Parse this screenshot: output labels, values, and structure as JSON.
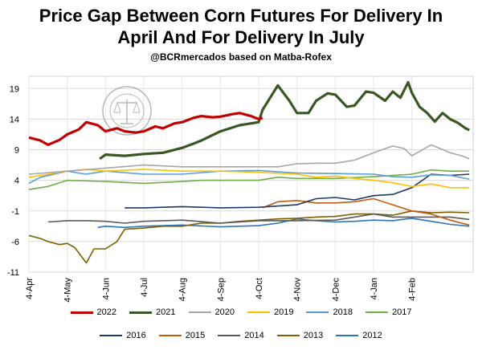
{
  "chart_data": {
    "type": "line",
    "title": "Price Gap Between Corn Futures For Delivery In April And For Delivery In July",
    "subtitle": "@BCRmercados based on Matba-Rofex",
    "xlabel": "",
    "ylabel": "",
    "x_ticks": [
      "4-Apr",
      "4-May",
      "4-Jun",
      "4-Jul",
      "4-Aug",
      "4-Sep",
      "4-Oct",
      "4-Nov",
      "4-Dec",
      "4-Jan",
      "4-Feb"
    ],
    "y_ticks": [
      19,
      14,
      9,
      4,
      -1,
      -6,
      -11
    ],
    "ylim": [
      -11,
      21
    ],
    "grid": true,
    "legend_position": "bottom",
    "x_unit": "months from 4-Apr",
    "series": [
      {
        "name": "2022",
        "color": "#c00000",
        "width": 3.2,
        "points": [
          [
            0,
            11
          ],
          [
            0.3,
            10.5
          ],
          [
            0.5,
            9.8
          ],
          [
            0.8,
            10.6
          ],
          [
            1,
            11.5
          ],
          [
            1.3,
            12.3
          ],
          [
            1.5,
            13.5
          ],
          [
            1.8,
            13
          ],
          [
            2,
            12
          ],
          [
            2.3,
            12.5
          ],
          [
            2.5,
            12
          ],
          [
            2.8,
            11.8
          ],
          [
            3,
            12
          ],
          [
            3.3,
            12.8
          ],
          [
            3.5,
            12.5
          ],
          [
            3.8,
            13.3
          ],
          [
            4,
            13.5
          ],
          [
            4.3,
            14.2
          ],
          [
            4.5,
            14.5
          ],
          [
            4.8,
            14.3
          ],
          [
            5,
            14.4
          ],
          [
            5.3,
            14.8
          ],
          [
            5.5,
            15
          ],
          [
            5.8,
            14.5
          ],
          [
            6,
            14
          ],
          [
            6.1,
            14.2
          ]
        ]
      },
      {
        "name": "2021",
        "color": "#385723",
        "width": 3.2,
        "points": [
          [
            1.85,
            7.5
          ],
          [
            2,
            8.2
          ],
          [
            2.5,
            8
          ],
          [
            3,
            8.3
          ],
          [
            3.5,
            8.5
          ],
          [
            4,
            9.3
          ],
          [
            4.3,
            10
          ],
          [
            4.5,
            10.5
          ],
          [
            5,
            12
          ],
          [
            5.5,
            13
          ],
          [
            6,
            13.5
          ],
          [
            6.1,
            15.5
          ],
          [
            6.3,
            17.5
          ],
          [
            6.5,
            19.5
          ],
          [
            6.8,
            17
          ],
          [
            7,
            15
          ],
          [
            7.3,
            15
          ],
          [
            7.5,
            17
          ],
          [
            7.8,
            18.2
          ],
          [
            8,
            18
          ],
          [
            8.3,
            16
          ],
          [
            8.5,
            16.2
          ],
          [
            8.8,
            18.5
          ],
          [
            9,
            18.3
          ],
          [
            9.3,
            17
          ],
          [
            9.5,
            18.5
          ],
          [
            9.7,
            17.5
          ],
          [
            9.9,
            20
          ],
          [
            10,
            18.3
          ],
          [
            10.2,
            16
          ],
          [
            10.4,
            15
          ],
          [
            10.6,
            13.6
          ],
          [
            10.8,
            15
          ],
          [
            11,
            14
          ],
          [
            11.2,
            13.4
          ],
          [
            11.4,
            12.5
          ],
          [
            11.5,
            12.2
          ]
        ]
      },
      {
        "name": "2020",
        "color": "#a6a6a6",
        "width": 1.6,
        "points": [
          [
            0,
            5
          ],
          [
            1,
            5.5
          ],
          [
            2,
            6
          ],
          [
            3,
            6.5
          ],
          [
            4,
            6.2
          ],
          [
            5,
            6.2
          ],
          [
            6,
            6.2
          ],
          [
            6.5,
            6.2
          ],
          [
            7,
            6.7
          ],
          [
            7.5,
            6.8
          ],
          [
            8,
            6.8
          ],
          [
            8.5,
            7.3
          ],
          [
            9,
            8.5
          ],
          [
            9.5,
            9.6
          ],
          [
            9.8,
            9.2
          ],
          [
            10,
            8
          ],
          [
            10.5,
            9.8
          ],
          [
            11,
            8.5
          ],
          [
            11.3,
            8
          ],
          [
            11.5,
            7.5
          ]
        ]
      },
      {
        "name": "2019",
        "color": "#ffc000",
        "width": 1.6,
        "points": [
          [
            0,
            4.5
          ],
          [
            0.5,
            5
          ],
          [
            1,
            5.5
          ],
          [
            1.5,
            5.8
          ],
          [
            2,
            5.5
          ],
          [
            3,
            5.8
          ],
          [
            4,
            5.5
          ],
          [
            5,
            5.5
          ],
          [
            6,
            5.3
          ],
          [
            7,
            5
          ],
          [
            7.5,
            4.5
          ],
          [
            8,
            4.7
          ],
          [
            8.5,
            4.3
          ],
          [
            9,
            4
          ],
          [
            9.5,
            3.6
          ],
          [
            10,
            3
          ],
          [
            10.5,
            3.4
          ],
          [
            11,
            2.8
          ],
          [
            11.5,
            2.8
          ]
        ]
      },
      {
        "name": "2018",
        "color": "#5b9bd5",
        "width": 1.6,
        "points": [
          [
            0,
            3.5
          ],
          [
            0.3,
            4.5
          ],
          [
            1,
            5.5
          ],
          [
            1.5,
            5
          ],
          [
            2,
            5.5
          ],
          [
            3,
            5
          ],
          [
            4,
            5
          ],
          [
            5,
            5.5
          ],
          [
            6,
            5.6
          ],
          [
            7,
            5.2
          ],
          [
            8,
            5.1
          ],
          [
            9,
            5
          ],
          [
            9.5,
            4.6
          ],
          [
            10,
            4.5
          ],
          [
            10.5,
            4.9
          ],
          [
            11,
            4.8
          ],
          [
            11.5,
            4.2
          ]
        ]
      },
      {
        "name": "2017",
        "color": "#70ad47",
        "width": 1.6,
        "points": [
          [
            0,
            2.5
          ],
          [
            0.5,
            3
          ],
          [
            1,
            4
          ],
          [
            2,
            3.8
          ],
          [
            3,
            3.5
          ],
          [
            4,
            3.8
          ],
          [
            4.5,
            4
          ],
          [
            5,
            4
          ],
          [
            6,
            4
          ],
          [
            6.5,
            4.5
          ],
          [
            7,
            4.3
          ],
          [
            8,
            4.3
          ],
          [
            9,
            4.6
          ],
          [
            10,
            5
          ],
          [
            10.5,
            5.7
          ],
          [
            11,
            5.5
          ],
          [
            11.5,
            5.5
          ]
        ]
      },
      {
        "name": "2016",
        "color": "#1f3864",
        "width": 1.6,
        "points": [
          [
            2.5,
            -0.5
          ],
          [
            3,
            -0.5
          ],
          [
            4,
            -0.3
          ],
          [
            5,
            -0.5
          ],
          [
            6,
            -0.4
          ],
          [
            7,
            0
          ],
          [
            7.5,
            1
          ],
          [
            8,
            1.2
          ],
          [
            8.5,
            0.8
          ],
          [
            9,
            1.5
          ],
          [
            9.5,
            1.7
          ],
          [
            10,
            2.8
          ],
          [
            10.5,
            5
          ],
          [
            11,
            4.8
          ],
          [
            11.5,
            5
          ]
        ]
      },
      {
        "name": "2015",
        "color": "#c55a11",
        "width": 1.6,
        "points": [
          [
            6.1,
            -0.5
          ],
          [
            6.5,
            0.5
          ],
          [
            7,
            0.7
          ],
          [
            7.5,
            0.3
          ],
          [
            8,
            0.3
          ],
          [
            8.5,
            0.5
          ],
          [
            9,
            1
          ],
          [
            9.5,
            0
          ],
          [
            10,
            -1
          ],
          [
            10.5,
            -1.5
          ],
          [
            11,
            -2.5
          ],
          [
            11.3,
            -3
          ],
          [
            11.5,
            -3.3
          ]
        ]
      },
      {
        "name": "2014",
        "color": "#595959",
        "width": 1.6,
        "points": [
          [
            0.5,
            -2.8
          ],
          [
            1,
            -2.6
          ],
          [
            1.5,
            -2.6
          ],
          [
            2,
            -2.7
          ],
          [
            2.5,
            -3
          ],
          [
            3,
            -2.7
          ],
          [
            4,
            -2.5
          ],
          [
            5,
            -3
          ],
          [
            6,
            -2.6
          ],
          [
            7,
            -2.6
          ],
          [
            8,
            -2.5
          ],
          [
            8.5,
            -2
          ],
          [
            9,
            -1.5
          ],
          [
            9.5,
            -2
          ],
          [
            10,
            -2
          ],
          [
            10.5,
            -2
          ],
          [
            11,
            -2
          ],
          [
            11.5,
            -2.4
          ]
        ]
      },
      {
        "name": "2013",
        "color": "#7f6000",
        "width": 1.6,
        "points": [
          [
            0,
            -5
          ],
          [
            0.3,
            -5.5
          ],
          [
            0.5,
            -6
          ],
          [
            0.8,
            -6.5
          ],
          [
            1,
            -6.3
          ],
          [
            1.2,
            -7
          ],
          [
            1.5,
            -9.5
          ],
          [
            1.7,
            -7.2
          ],
          [
            2,
            -7.2
          ],
          [
            2.3,
            -6
          ],
          [
            2.5,
            -4
          ],
          [
            3,
            -3.8
          ],
          [
            3.5,
            -3.5
          ],
          [
            4,
            -3.5
          ],
          [
            4.5,
            -3
          ],
          [
            5,
            -3
          ],
          [
            5.5,
            -2.7
          ],
          [
            6,
            -2.5
          ],
          [
            6.5,
            -2.3
          ],
          [
            7,
            -2.2
          ],
          [
            7.5,
            -2
          ],
          [
            8,
            -1.9
          ],
          [
            8.5,
            -1.5
          ],
          [
            9,
            -1.5
          ],
          [
            9.5,
            -1.7
          ],
          [
            10,
            -1
          ],
          [
            10.5,
            -1.3
          ],
          [
            11,
            -1.2
          ],
          [
            11.5,
            -1.3
          ]
        ]
      },
      {
        "name": "2012",
        "color": "#2e75b6",
        "width": 1.6,
        "points": [
          [
            1.8,
            -3.7
          ],
          [
            2,
            -3.5
          ],
          [
            2.5,
            -3.7
          ],
          [
            3,
            -3.5
          ],
          [
            4,
            -3.3
          ],
          [
            5,
            -3.6
          ],
          [
            6,
            -3.4
          ],
          [
            6.5,
            -3
          ],
          [
            7,
            -2.3
          ],
          [
            7.5,
            -2.6
          ],
          [
            8,
            -2.8
          ],
          [
            8.5,
            -2.7
          ],
          [
            9,
            -2.5
          ],
          [
            9.5,
            -2.6
          ],
          [
            10,
            -2.2
          ],
          [
            10.5,
            -2.7
          ],
          [
            11,
            -3.2
          ],
          [
            11.5,
            -3.5
          ]
        ]
      }
    ],
    "legend_rows": [
      [
        "2022",
        "2021",
        "2020",
        "2019",
        "2018",
        "2017"
      ],
      [
        "2016",
        "2015",
        "2014",
        "2013",
        "2012"
      ]
    ]
  }
}
